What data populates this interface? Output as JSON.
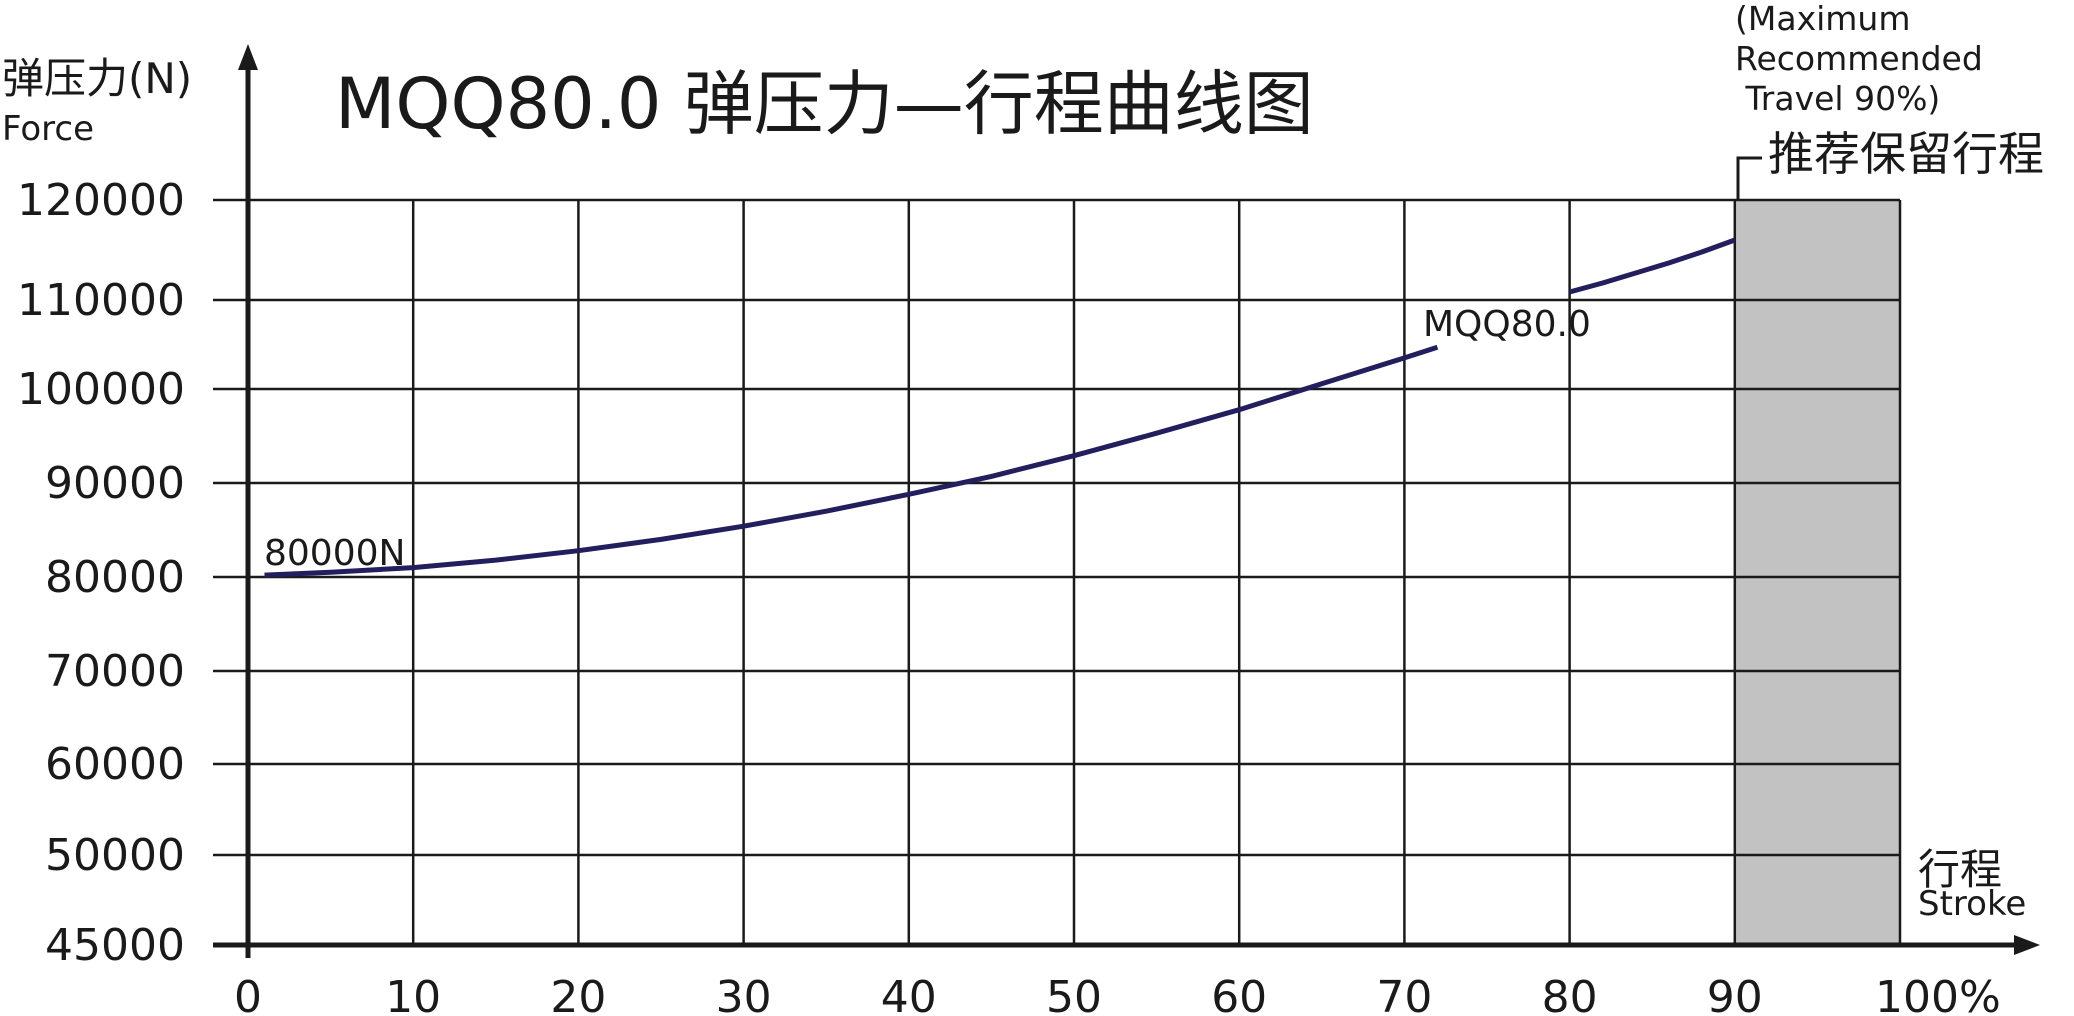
{
  "chart_data": {
    "type": "line",
    "title": "MQQ80.0  弹压力—行程曲线图",
    "ylabel_cn": "弹压力(N)",
    "ylabel_en": "Force",
    "xlabel_cn": "行程",
    "xlabel_en": "Stroke",
    "y_tick_values": [
      45000,
      50000,
      60000,
      70000,
      80000,
      90000,
      100000,
      110000,
      120000
    ],
    "y_tick_labels": [
      "45000",
      "50000",
      "60000",
      "70000",
      "80000",
      "90000",
      "100000",
      "110000",
      "120000"
    ],
    "x_tick_values": [
      0,
      10,
      20,
      30,
      40,
      50,
      60,
      70,
      80,
      90,
      100
    ],
    "x_tick_labels": [
      "0",
      "10",
      "20",
      "30",
      "40",
      "50",
      "60",
      "70",
      "80",
      "90",
      "100%"
    ],
    "xlim": [
      0,
      100
    ],
    "ylim": [
      45000,
      120000
    ],
    "grid": true,
    "series": [
      {
        "name": "MQQ80.0",
        "color": "#231f5e",
        "segments": [
          {
            "x": [
              1,
              5,
              10,
              15,
              20,
              25,
              30,
              35,
              40,
              45,
              50,
              55,
              60,
              65,
              70,
              72
            ],
            "y": [
              80200,
              80500,
              81000,
              81800,
              82800,
              84000,
              85400,
              87000,
              88800,
              90700,
              92900,
              95300,
              97800,
              100600,
              103500,
              104700
            ]
          },
          {
            "x": [
              80,
              82,
              84,
              86,
              88,
              90
            ],
            "y": [
              110800,
              111700,
              112700,
              113700,
              114800,
              116000
            ]
          }
        ]
      }
    ],
    "annotations": {
      "start_label": "80000N",
      "series_label": "MQQ80.0"
    },
    "reserved_region": {
      "x_range": [
        90,
        100
      ],
      "color": "#c2c2c2",
      "label_en_lines": [
        "(Maximum",
        "Recommended",
        " Travel 90%)"
      ],
      "label_cn": "推荐保留行程"
    }
  }
}
